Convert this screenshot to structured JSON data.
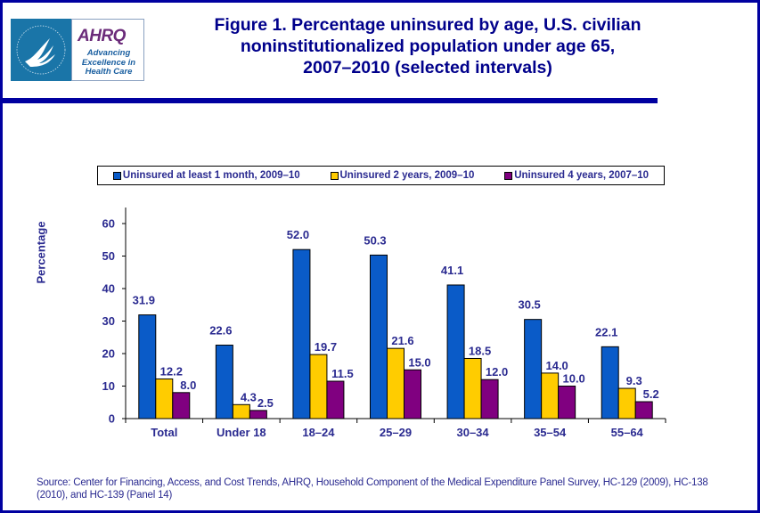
{
  "logo": {
    "brand": "AHRQ",
    "tagline": "Advancing Excellence in Health Care",
    "seal_icon": "hhs-eagle-seal-icon"
  },
  "title": "Figure 1. Percentage uninsured by age, U.S. civilian noninstitutionalized population under age 65, 2007–2010 (selected intervals)",
  "title_lines": [
    "Figure 1. Percentage uninsured by age, U.S. civilian",
    "noninstitutionalized population under age 65,",
    "2007–2010 (selected intervals)"
  ],
  "source": "Source: Center for Financing, Access, and Cost Trends, AHRQ, Household Component of the Medical Expenditure Panel Survey, HC-129 (2009), HC-138 (2010), and HC-139 (Panel 14)",
  "chart_data": {
    "type": "bar",
    "title": "Figure 1. Percentage uninsured by age, U.S. civilian noninstitutionalized population under age 65, 2007–2010 (selected intervals)",
    "xlabel": "",
    "ylabel": "Percentage",
    "ylim": [
      0,
      60
    ],
    "yticks": [
      0,
      10,
      20,
      30,
      40,
      50,
      60
    ],
    "grid": false,
    "legend_position": "top",
    "categories": [
      "Total",
      "Under 18",
      "18–24",
      "25–29",
      "30–34",
      "35–54",
      "55–64"
    ],
    "series": [
      {
        "name": "Uninsured at least 1 month, 2009–10",
        "color": "#0a5bc8",
        "values": [
          31.9,
          22.6,
          52.0,
          50.3,
          41.1,
          30.5,
          22.1
        ]
      },
      {
        "name": "Uninsured 2 years, 2009–10",
        "color": "#ffcc00",
        "values": [
          12.2,
          4.3,
          19.7,
          21.6,
          18.5,
          14.0,
          9.3
        ]
      },
      {
        "name": "Uninsured 4 years, 2007–10",
        "color": "#800080",
        "values": [
          8.0,
          2.5,
          11.5,
          15.0,
          12.0,
          10.0,
          5.2
        ]
      }
    ]
  }
}
